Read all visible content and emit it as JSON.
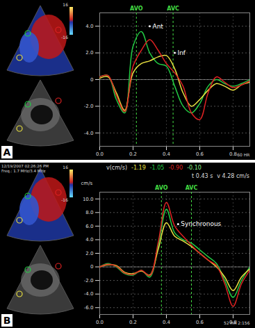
{
  "chart_data": [
    {
      "type": "line",
      "panel_label": "A",
      "echo_texts": [],
      "colorbar": {
        "max": 16,
        "min": -16
      },
      "x": [
        0,
        0.05,
        0.1,
        0.15,
        0.2,
        0.25,
        0.3,
        0.35,
        0.4,
        0.45,
        0.5,
        0.55,
        0.6,
        0.65,
        0.7,
        0.75,
        0.8,
        0.85,
        0.9
      ],
      "series": [
        {
          "color": "#22cc44",
          "values": [
            0.2,
            0.3,
            -1.5,
            -2.5,
            2.5,
            3.6,
            2.0,
            1.2,
            1.0,
            -0.5,
            -2.0,
            -2.5,
            -1.8,
            -0.5,
            0.0,
            -0.3,
            -0.5,
            -0.3,
            0
          ]
        },
        {
          "color": "#e8e040",
          "values": [
            0.1,
            0.2,
            -1.0,
            -2.3,
            0.5,
            1.2,
            1.4,
            1.7,
            1.8,
            0.8,
            -1.0,
            -2.0,
            -1.5,
            -0.8,
            -0.3,
            -0.5,
            -0.8,
            -0.4,
            -0.2
          ]
        },
        {
          "color": "#dd2222",
          "values": [
            0.2,
            0.3,
            -1.2,
            -2.4,
            1.0,
            2.2,
            3.0,
            2.2,
            1.2,
            0.5,
            -0.5,
            -2.5,
            -3.0,
            -1.0,
            0.2,
            -0.2,
            -0.6,
            -0.4,
            -0.1
          ]
        }
      ],
      "xlim": [
        0,
        0.9
      ],
      "xticks": [
        {
          "value": 0,
          "label": "0.0"
        },
        0.2,
        0.4,
        0.6,
        0.8
      ],
      "ylim": [
        -5,
        5
      ],
      "yticks": [
        {
          "value": -4,
          "label": "-4.0"
        },
        {
          "value": -2,
          "label": "-2.0"
        },
        0,
        {
          "value": 2,
          "label": "2.0"
        },
        {
          "value": 4,
          "label": "4.0"
        }
      ],
      "grid": true,
      "markers": [
        {
          "x": 0.22,
          "label": "AVO"
        },
        {
          "x": 0.44,
          "label": "AVC"
        }
      ],
      "annotations": [
        {
          "text": "Ant",
          "x": 0.3,
          "y": 4.0
        },
        {
          "text": "Inf",
          "x": 0.45,
          "y": 2.0
        }
      ],
      "corner_texts": [
        "60",
        "HR"
      ]
    },
    {
      "type": "line",
      "panel_label": "B",
      "echo_texts": [
        "12/19/2007 02:26:26 PM",
        "Freq.: 1.7 MHz/3.4 MHz"
      ],
      "colorbar": {
        "max": 16,
        "min": -16
      },
      "header": {
        "label": "v(cm/s)",
        "values": [
          {
            "text": "-1.19",
            "color": "#e8e040"
          },
          {
            "text": "-1.05",
            "color": "#22cc44"
          },
          {
            "text": "-0.90",
            "color": "#dd2222"
          },
          {
            "text": "-0.10",
            "color": "#88ee88"
          }
        ],
        "extra": [
          "t 0.43 s",
          "v 4.28 cm/s"
        ]
      },
      "ylabel": "cm/s",
      "x": [
        0,
        0.05,
        0.1,
        0.15,
        0.2,
        0.25,
        0.3,
        0.35,
        0.4,
        0.45,
        0.5,
        0.55,
        0.6,
        0.65,
        0.7,
        0.75,
        0.8,
        0.85,
        0.9
      ],
      "series": [
        {
          "color": "#22cc44",
          "values": [
            0,
            0.5,
            0,
            -1.0,
            -1.2,
            -0.5,
            -1.5,
            3.0,
            8.5,
            5.0,
            4.0,
            3.5,
            2.5,
            1.5,
            0.5,
            -2.0,
            -4.5,
            -2.0,
            0
          ]
        },
        {
          "color": "#e8e040",
          "values": [
            0,
            0.3,
            0.2,
            -0.8,
            -1.0,
            -0.6,
            -1.2,
            2.5,
            6.5,
            4.5,
            3.8,
            3.0,
            2.0,
            1.0,
            0,
            -1.5,
            -3.5,
            -1.5,
            -0.3
          ]
        },
        {
          "color": "#dd2222",
          "values": [
            0,
            0.4,
            0.1,
            -0.9,
            -1.1,
            -0.5,
            -1.3,
            3.5,
            9.5,
            6.0,
            4.5,
            3.2,
            2.0,
            1.0,
            0.2,
            -2.5,
            -5.8,
            -2.5,
            -0.5
          ]
        }
      ],
      "xlim": [
        0,
        0.9
      ],
      "xticks": [
        {
          "value": 0,
          "label": "0.0"
        },
        0.2,
        0.4,
        0.6,
        0.8
      ],
      "ylim": [
        -7,
        11
      ],
      "yticks": [
        {
          "value": -6,
          "label": "-6.0"
        },
        {
          "value": -4,
          "label": "-4.0"
        },
        {
          "value": -2,
          "label": "-2.0"
        },
        0,
        {
          "value": 2,
          "label": "2.0"
        },
        {
          "value": 4,
          "label": "4.0"
        },
        {
          "value": 6,
          "label": "6.0"
        },
        {
          "value": 8,
          "label": "8.0"
        },
        {
          "value": 10,
          "label": "10.0"
        }
      ],
      "grid": true,
      "markers": [
        {
          "x": 0.37,
          "label": "AVO"
        },
        {
          "x": 0.55,
          "label": "AVC"
        }
      ],
      "annotations": [
        {
          "text": "Synchronous",
          "x": 0.47,
          "y": 6.3
        }
      ],
      "corner_texts": [
        "52",
        "HR",
        "2:156"
      ]
    }
  ]
}
